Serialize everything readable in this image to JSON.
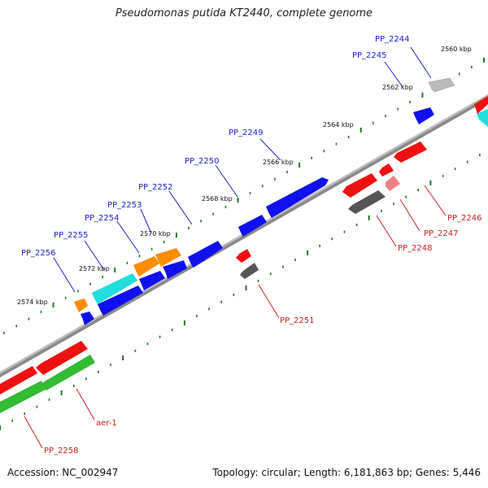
{
  "title": "Pseudomonas putida KT2440, complete genome",
  "footer": {
    "accession": "Accession: NC_002947",
    "summary": "Topology: circular; Length: 6,181,863 bp; Genes: 5,446"
  },
  "colors": {
    "backbone": "#888888",
    "tick": "#1c7a1c",
    "label_blue": "#2222cc",
    "label_red": "#cc2222",
    "blue": "#1010ee",
    "red": "#ee1010",
    "orange": "#ff8c00",
    "cyan": "#22dddd",
    "dark_gray": "#555555",
    "light_gray": "#bbbbbb",
    "pink": "#f08080",
    "green": "#33bb33"
  },
  "ticks": [
    "2560 kbp",
    "2562 kbp",
    "2564 kbp",
    "2566 kbp",
    "2568 kbp",
    "2570 kbp",
    "2572 kbp",
    "2574 kbp"
  ],
  "gene_labels": [
    {
      "text": "PP_2244",
      "color": "label_blue"
    },
    {
      "text": "PP_2245",
      "color": "label_blue"
    },
    {
      "text": "PP_2249",
      "color": "label_blue"
    },
    {
      "text": "PP_2250",
      "color": "label_blue"
    },
    {
      "text": "PP_2252",
      "color": "label_blue"
    },
    {
      "text": "PP_2253",
      "color": "label_blue"
    },
    {
      "text": "PP_2254",
      "color": "label_blue"
    },
    {
      "text": "PP_2255",
      "color": "label_blue"
    },
    {
      "text": "PP_2256",
      "color": "label_blue"
    },
    {
      "text": "PP_2246",
      "color": "label_red"
    },
    {
      "text": "PP_2247",
      "color": "label_red"
    },
    {
      "text": "PP_2248",
      "color": "label_red"
    },
    {
      "text": "PP_2251",
      "color": "label_red"
    },
    {
      "text": "aer-1",
      "color": "label_red"
    },
    {
      "text": "PP_2258",
      "color": "label_red"
    }
  ]
}
